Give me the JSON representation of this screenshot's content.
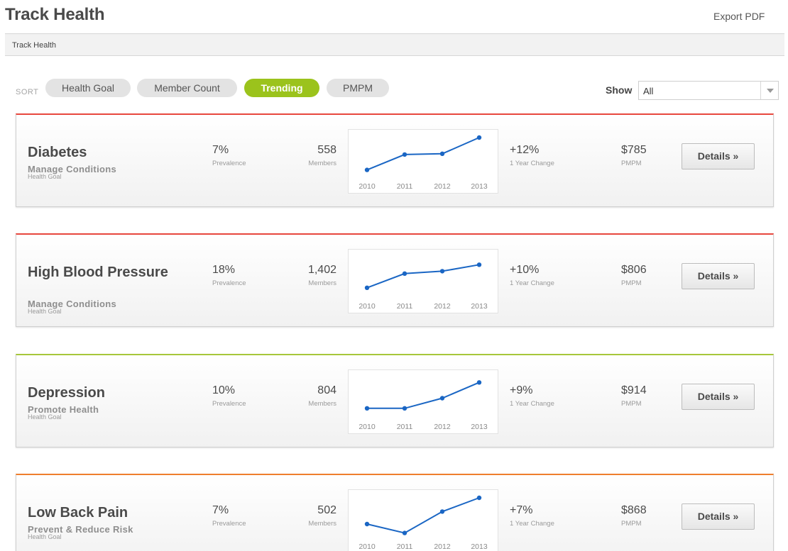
{
  "header": {
    "title": "Track Health",
    "export_label": "Export PDF"
  },
  "breadcrumb": "Track Health",
  "sort": {
    "label": "SORT",
    "options": [
      "Health Goal",
      "Member Count",
      "Trending",
      "PMPM"
    ],
    "active": "Trending"
  },
  "filter": {
    "label": "Show",
    "selected": "All"
  },
  "colors": {
    "accent_green": "#9bc31c",
    "chart_blue": "#1a66c4",
    "red": "#e8473e",
    "lime": "#a7c73a",
    "orange": "#ef7f2d"
  },
  "cards": [
    {
      "title": "Diabetes",
      "category": "Manage Conditions",
      "caption": "Health Goal",
      "prevalence": "7%",
      "prevalence_label": "Prevalence",
      "members": "558",
      "members_label": "Members",
      "change": "+12%",
      "change_label": "1 Year Change",
      "pmpm": "$785",
      "pmpm_label": "PMPM",
      "button": "Details »",
      "top_color": "#e8473e"
    },
    {
      "title": "High Blood Pressure",
      "category": "Manage Conditions",
      "caption": "Health Goal",
      "prevalence": "18%",
      "prevalence_label": "Prevalence",
      "members": "1,402",
      "members_label": "Members",
      "change": "+10%",
      "change_label": "1 Year Change",
      "pmpm": "$806",
      "pmpm_label": "PMPM",
      "button": "Details »",
      "top_color": "#e8473e"
    },
    {
      "title": "Depression",
      "category": "Promote Health",
      "caption": "Health Goal",
      "prevalence": "10%",
      "prevalence_label": "Prevalence",
      "members": "804",
      "members_label": "Members",
      "change": "+9%",
      "change_label": "1 Year Change",
      "pmpm": "$914",
      "pmpm_label": "PMPM",
      "button": "Details »",
      "top_color": "#a7c73a"
    },
    {
      "title": "Low Back Pain",
      "category": "Prevent & Reduce Risk",
      "caption": "Health Goal",
      "prevalence": "7%",
      "prevalence_label": "Prevalence",
      "members": "502",
      "members_label": "Members",
      "change": "+7%",
      "change_label": "1 Year Change",
      "pmpm": "$868",
      "pmpm_label": "PMPM",
      "button": "Details »",
      "top_color": "#ef7f2d"
    }
  ],
  "chart_data": [
    {
      "type": "line",
      "x": [
        "2010",
        "2011",
        "2012",
        "2013"
      ],
      "series": [
        {
          "values": [
            0.2,
            0.58,
            0.6,
            1.0
          ]
        }
      ],
      "grid": false
    },
    {
      "type": "line",
      "x": [
        "2010",
        "2011",
        "2012",
        "2013"
      ],
      "series": [
        {
          "values": [
            0.25,
            0.6,
            0.66,
            0.82
          ]
        }
      ],
      "grid": false
    },
    {
      "type": "line",
      "x": [
        "2010",
        "2011",
        "2012",
        "2013"
      ],
      "series": [
        {
          "values": [
            0.25,
            0.25,
            0.5,
            0.89
          ]
        }
      ],
      "grid": false
    },
    {
      "type": "line",
      "x": [
        "2010",
        "2011",
        "2012",
        "2013"
      ],
      "series": [
        {
          "values": [
            0.35,
            0.13,
            0.66,
            1.0
          ]
        }
      ],
      "grid": false
    }
  ]
}
